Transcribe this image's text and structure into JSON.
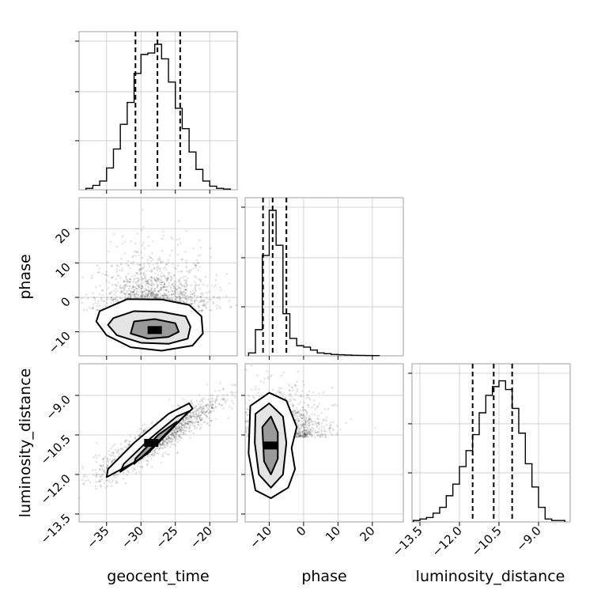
{
  "chart_data": {
    "type": "corner",
    "parameters": [
      "geocent_time",
      "phase",
      "luminosity_distance"
    ],
    "axis_labels": {
      "geocent_time": "geocent_time",
      "phase": "phase",
      "luminosity_distance": "luminosity_distance"
    },
    "ranges": {
      "geocent_time": [
        -39,
        -16
      ],
      "phase": [
        -17,
        29
      ],
      "luminosity_distance": [
        -13.8,
        -7.8
      ]
    },
    "ticks": {
      "geocent_time": {
        "values": [
          -35,
          -30,
          -25,
          -20
        ],
        "labels": [
          "−35",
          "−30",
          "−25",
          "−20"
        ]
      },
      "phase": {
        "values": [
          -10,
          0,
          10,
          20
        ],
        "labels": [
          "−10",
          "0",
          "10",
          "20"
        ]
      },
      "luminosity_distance": {
        "values": [
          -13.5,
          -12.0,
          -10.5,
          -9.0
        ],
        "labels": [
          "−13.5",
          "−12.0",
          "−10.5",
          "−9.0"
        ]
      }
    },
    "grid": true,
    "quantiles": {
      "geocent_time": [
        -30.8,
        -27.6,
        -24.3
      ],
      "phase": [
        -11.8,
        -9.0,
        -5.0
      ],
      "luminosity_distance": [
        -11.5,
        -10.7,
        -10.0
      ]
    },
    "histograms": {
      "geocent_time": {
        "edges": [
          -38,
          -37,
          -36,
          -35,
          -34,
          -33,
          -32,
          -31,
          -30,
          -29,
          -28,
          -27,
          -26,
          -25,
          -24,
          -23,
          -22,
          -21,
          -20,
          -19,
          -18,
          -17
        ],
        "counts": [
          0.01,
          0.03,
          0.06,
          0.15,
          0.28,
          0.45,
          0.6,
          0.8,
          0.93,
          0.94,
          1.0,
          0.9,
          0.74,
          0.56,
          0.42,
          0.26,
          0.14,
          0.06,
          0.025,
          0.01,
          0.005
        ]
      },
      "phase": {
        "edges": [
          -16,
          -14,
          -12,
          -10,
          -8,
          -6,
          -4,
          -2,
          0,
          2,
          4,
          6,
          8,
          10,
          12,
          14,
          16,
          18,
          20,
          22
        ],
        "counts": [
          0.02,
          0.18,
          0.69,
          1.0,
          0.76,
          0.29,
          0.12,
          0.07,
          0.06,
          0.04,
          0.02,
          0.015,
          0.01,
          0.008,
          0.006,
          0.004,
          0.003,
          0.002,
          0.0015
        ]
      },
      "luminosity_distance": {
        "edges": [
          -13.75,
          -13.5,
          -13.25,
          -13.0,
          -12.75,
          -12.5,
          -12.25,
          -12.0,
          -11.75,
          -11.5,
          -11.25,
          -11.0,
          -10.75,
          -10.5,
          -10.25,
          -10.0,
          -9.75,
          -9.5,
          -9.25,
          -9.0,
          -8.75,
          -8.5,
          -8.25,
          -8.0
        ],
        "counts": [
          0.01,
          0.02,
          0.03,
          0.06,
          0.1,
          0.18,
          0.26,
          0.38,
          0.49,
          0.6,
          0.75,
          0.87,
          0.93,
          0.97,
          0.91,
          0.78,
          0.61,
          0.4,
          0.24,
          0.1,
          0.02,
          0.01,
          0.01
        ]
      }
    },
    "joint": {
      "phase_vs_geocent_time": {
        "mode": [
          -28,
          -9.5
        ],
        "contour_inner": [
          [
            -31,
            -7
          ],
          [
            -28,
            -6.3
          ],
          [
            -25,
            -7.5
          ],
          [
            -24.5,
            -10
          ],
          [
            -26,
            -11.5
          ],
          [
            -29,
            -12
          ],
          [
            -31.5,
            -10.5
          ]
        ],
        "contour_middle": [
          [
            -34,
            -6
          ],
          [
            -31,
            -4
          ],
          [
            -27,
            -4.2
          ],
          [
            -23.5,
            -5.5
          ],
          [
            -22.8,
            -8.5
          ],
          [
            -23.2,
            -12
          ],
          [
            -26,
            -13.5
          ],
          [
            -30,
            -13.2
          ],
          [
            -33.5,
            -11
          ],
          [
            -34.8,
            -8
          ]
        ],
        "contour_outer": [
          [
            -36,
            -4
          ],
          [
            -32,
            -0.5
          ],
          [
            -27,
            -0.6
          ],
          [
            -23,
            -2.2
          ],
          [
            -21.2,
            -5.5
          ],
          [
            -21,
            -10.5
          ],
          [
            -22.5,
            -14
          ],
          [
            -27,
            -15.5
          ],
          [
            -31.5,
            -14.5
          ],
          [
            -35,
            -11
          ],
          [
            -36.5,
            -7
          ]
        ],
        "scatter_center": [
          -28,
          -4
        ],
        "scatter_spread": [
          4.0,
          9.0
        ]
      },
      "luminosity_distance_vs_geocent_time": {
        "mode": [
          -28.5,
          -10.8
        ],
        "contour_inner": [
          [
            -31,
            -11.6
          ],
          [
            -28,
            -10.9
          ],
          [
            -25,
            -10.1
          ],
          [
            -24.8,
            -10.0
          ],
          [
            -27.5,
            -10.5
          ],
          [
            -30.8,
            -11.4
          ]
        ],
        "contour_middle": [
          [
            -33,
            -11.9
          ],
          [
            -29,
            -11.2
          ],
          [
            -24.5,
            -10.0
          ],
          [
            -23,
            -9.6
          ],
          [
            -24.8,
            -9.8
          ],
          [
            -28.5,
            -10.6
          ],
          [
            -32.5,
            -11.6
          ]
        ],
        "contour_outer": [
          [
            -35,
            -12.1
          ],
          [
            -30,
            -11.4
          ],
          [
            -25,
            -10.1
          ],
          [
            -22.5,
            -9.5
          ],
          [
            -23,
            -9.3
          ],
          [
            -26,
            -9.7
          ],
          [
            -31,
            -10.8
          ],
          [
            -34.8,
            -11.8
          ]
        ],
        "scatter_center": [
          -27.5,
          -10.6
        ],
        "scatter_spread": [
          4.5,
          0.15
        ]
      },
      "luminosity_distance_vs_phase": {
        "mode": [
          -9.5,
          -10.9
        ],
        "contour_inner": [
          [
            -12,
            -10.2
          ],
          [
            -9.5,
            -9.8
          ],
          [
            -7.5,
            -10.4
          ],
          [
            -7.5,
            -11.4
          ],
          [
            -9.5,
            -12.0
          ],
          [
            -11.5,
            -11.5
          ]
        ],
        "contour_middle": [
          [
            -14,
            -9.7
          ],
          [
            -10,
            -9.3
          ],
          [
            -6,
            -9.8
          ],
          [
            -5,
            -10.8
          ],
          [
            -6,
            -12.0
          ],
          [
            -9.5,
            -12.5
          ],
          [
            -13,
            -12.0
          ],
          [
            -14.2,
            -10.8
          ]
        ],
        "contour_outer": [
          [
            -15.5,
            -9.4
          ],
          [
            -10,
            -8.9
          ],
          [
            -5,
            -9.2
          ],
          [
            -2,
            -10.2
          ],
          [
            -3.5,
            -11.0
          ],
          [
            -2.5,
            -11.8
          ],
          [
            -4.5,
            -12.5
          ],
          [
            -9.5,
            -12.9
          ],
          [
            -14,
            -12.6
          ],
          [
            -16,
            -11.2
          ]
        ],
        "scatter_center": [
          -7,
          -10.6
        ],
        "scatter_spread": [
          6.5,
          0.9
        ]
      }
    }
  }
}
